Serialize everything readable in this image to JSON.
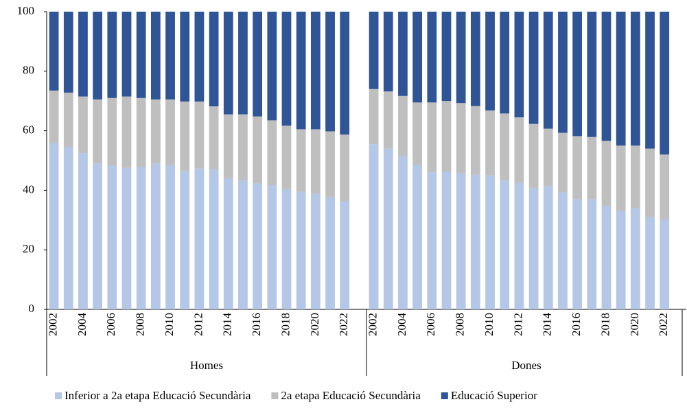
{
  "chart_data": {
    "type": "stacked_bar",
    "groups": [
      "Homes",
      "Dones"
    ],
    "categories": [
      "2002",
      null,
      "2004",
      null,
      "2006",
      null,
      "2008",
      null,
      "2010",
      null,
      "2012",
      null,
      "2014",
      null,
      "2016",
      null,
      "2018",
      null,
      "2020",
      null,
      "2022",
      "2002",
      null,
      "2004",
      null,
      "2006",
      null,
      "2008",
      null,
      "2010",
      null,
      "2012",
      null,
      "2014",
      null,
      "2016",
      null,
      "2018",
      null,
      "2020",
      null,
      "2022"
    ],
    "series": [
      {
        "name": "Inferior a 2a etapa Educació Secundària",
        "color": "#b4c7e7",
        "values": [
          56,
          54.5,
          52.5,
          49,
          48.5,
          47.5,
          47.8,
          49,
          48.5,
          46.5,
          47.3,
          47,
          44,
          43.3,
          42.3,
          41.7,
          40.5,
          39.5,
          38.8,
          37.8,
          36.3,
          55.5,
          54,
          51.5,
          48.5,
          46,
          46.2,
          45.8,
          45.2,
          45,
          43.5,
          42.5,
          40.8,
          41.3,
          39.3,
          37,
          37,
          34.8,
          33,
          34,
          31,
          30.2
        ]
      },
      {
        "name": "2a etapa Educació Secundària",
        "color": "#bfbfbf",
        "values": [
          17.5,
          18.3,
          19,
          21.5,
          22.5,
          24,
          23.2,
          21.5,
          22,
          23.3,
          22.5,
          21.2,
          21.5,
          22.2,
          22.5,
          21.8,
          21.2,
          21,
          21.7,
          22,
          22.4,
          18.5,
          19.2,
          20.2,
          21,
          23.5,
          23.8,
          23.5,
          23.1,
          21.8,
          22.3,
          22,
          21.5,
          19.4,
          20,
          21.2,
          20.9,
          21.8,
          22,
          21,
          23,
          21.8
        ]
      },
      {
        "name": "Educació Superior",
        "color": "#2f5597",
        "values": [
          26.5,
          27.2,
          28.5,
          29.5,
          29,
          28.5,
          29,
          29.5,
          29.5,
          30.2,
          30.2,
          31.8,
          34.5,
          34.5,
          35.2,
          36.5,
          38.3,
          39.5,
          39.5,
          40.2,
          41.3,
          26,
          26.8,
          28.3,
          30.5,
          30.5,
          30,
          30.7,
          31.7,
          33.2,
          34.2,
          35.5,
          37.7,
          39.3,
          40.7,
          41.8,
          42.1,
          43.4,
          45,
          45,
          46,
          48
        ]
      }
    ],
    "ylim": [
      0,
      100
    ],
    "yticks": [
      0,
      20,
      40,
      60,
      80,
      100
    ]
  }
}
